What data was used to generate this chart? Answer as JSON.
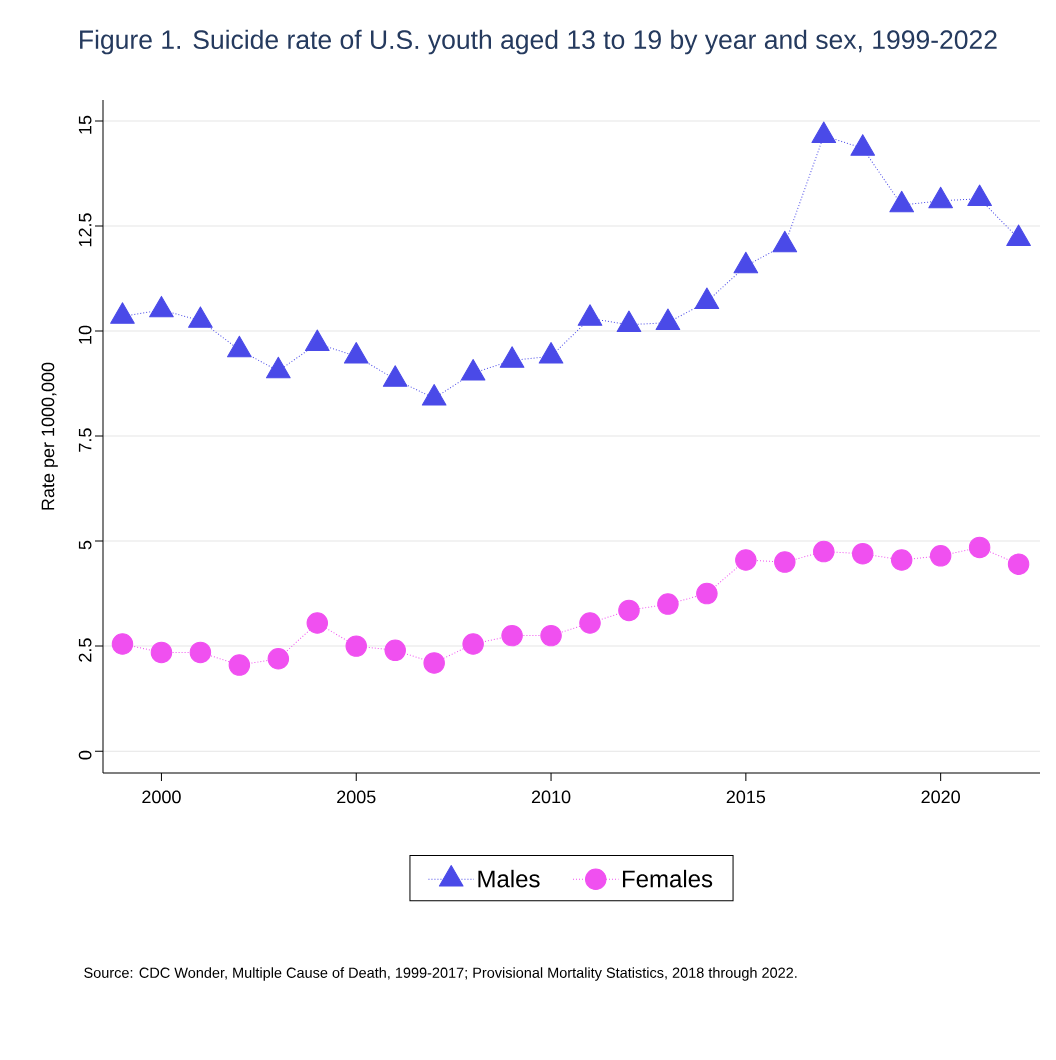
{
  "chart_data": {
    "type": "line",
    "title": "Figure 1. Suicide rate of U.S. youth aged 13 to 19 by year and sex, 1999-2022",
    "ylabel": "Rate per 1000,000",
    "x": [
      1999,
      2000,
      2001,
      2002,
      2003,
      2004,
      2005,
      2006,
      2007,
      2008,
      2009,
      2010,
      2011,
      2012,
      2013,
      2014,
      2015,
      2016,
      2017,
      2018,
      2019,
      2020,
      2021,
      2022
    ],
    "series": [
      {
        "name": "Males",
        "color": "#4a4ae8",
        "marker": "triangle",
        "values": [
          10.35,
          10.5,
          10.25,
          9.55,
          9.05,
          9.7,
          9.4,
          8.85,
          8.4,
          9.0,
          9.3,
          9.4,
          10.3,
          10.15,
          10.2,
          10.7,
          11.55,
          12.05,
          14.65,
          14.35,
          13.0,
          13.1,
          13.15,
          12.2
        ]
      },
      {
        "name": "Females",
        "color": "#f050f0",
        "marker": "circle",
        "values": [
          2.55,
          2.35,
          2.35,
          2.05,
          2.2,
          3.05,
          2.5,
          2.4,
          2.1,
          2.55,
          2.75,
          2.75,
          3.05,
          3.35,
          3.5,
          3.75,
          4.55,
          4.5,
          4.75,
          4.7,
          4.55,
          4.65,
          4.85,
          4.45
        ]
      }
    ],
    "xlim": [
      1998.5,
      2022.55
    ],
    "ylim": [
      -0.52,
      15.5
    ],
    "xticks": [
      2000,
      2005,
      2010,
      2015,
      2020
    ],
    "yticks": [
      0,
      {
        "value": 2.5,
        "label": "2.5"
      },
      5,
      {
        "value": 7.5,
        "label": "7.5"
      },
      10,
      {
        "value": 12.5,
        "label": "12.5"
      },
      15
    ],
    "grid": "y",
    "legend": "bottom",
    "line_style": "dotted",
    "annotations": [
      "Source: CDC Wonder, Multiple Cause of Death, 1999-2017; Provisional Mortality Statistics, 2018 through 2022."
    ]
  }
}
